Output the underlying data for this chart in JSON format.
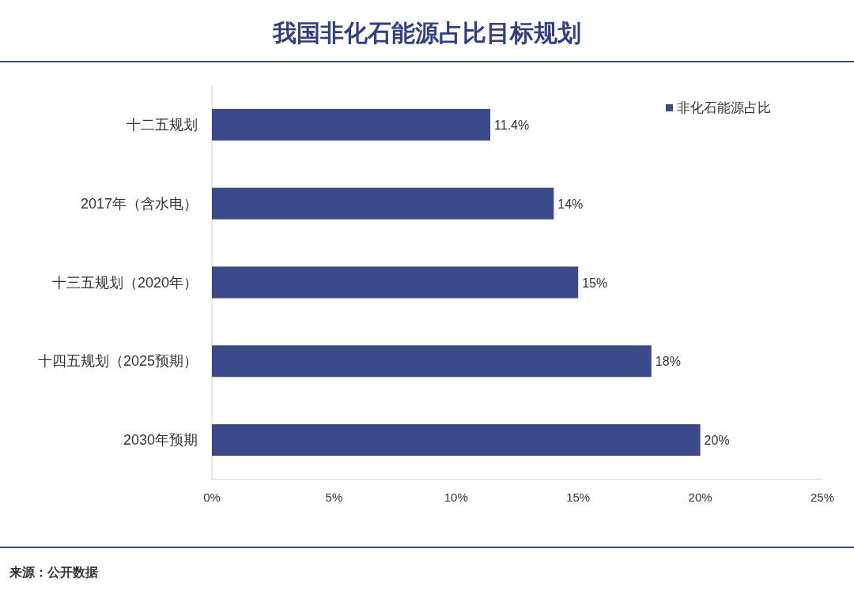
{
  "chart_data": {
    "type": "bar",
    "orientation": "horizontal",
    "title": "我国非化石能源占比目标规划",
    "categories": [
      "十二五规划",
      "2017年（含水电）",
      "十三五规划（2020年）",
      "十四五规划（2025预期）",
      "2030年预期"
    ],
    "series": [
      {
        "name": "非化石能源占比",
        "color": "#3b4a8a",
        "values": [
          11.4,
          14,
          15,
          18,
          20
        ],
        "value_labels": [
          "11.4%",
          "14%",
          "15%",
          "18%",
          "20%"
        ]
      }
    ],
    "xlim": [
      0,
      25
    ],
    "xticks": [
      {
        "value": 0,
        "label": "0%"
      },
      {
        "value": 5,
        "label": "5%"
      },
      {
        "value": 10,
        "label": "10%"
      },
      {
        "value": 15,
        "label": "15%"
      },
      {
        "value": 20,
        "label": "20%"
      },
      {
        "value": 25,
        "label": "25%"
      }
    ],
    "legend": "top right",
    "grid": false,
    "annotations": [
      "来源：公开数据"
    ]
  }
}
